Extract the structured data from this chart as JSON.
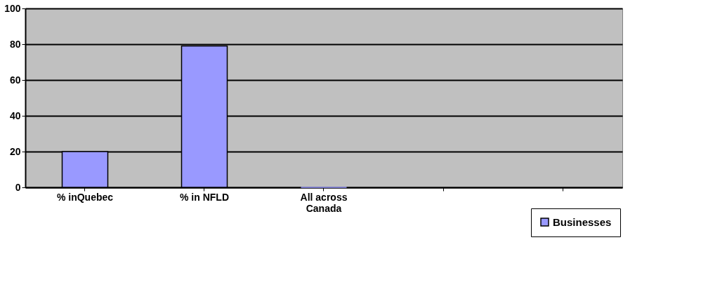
{
  "chart_data": {
    "type": "bar",
    "categories": [
      "% inQuebec",
      "% in NFLD",
      "All across Canada",
      null,
      null
    ],
    "series": [
      {
        "name": "Businesses",
        "color": "#9999ff",
        "values": [
          20,
          79,
          0,
          null,
          null
        ]
      }
    ],
    "ylim": [
      0,
      100
    ],
    "yticks": [
      0,
      20,
      40,
      60,
      80,
      100
    ],
    "grid": "y",
    "legend": "bottom right"
  }
}
